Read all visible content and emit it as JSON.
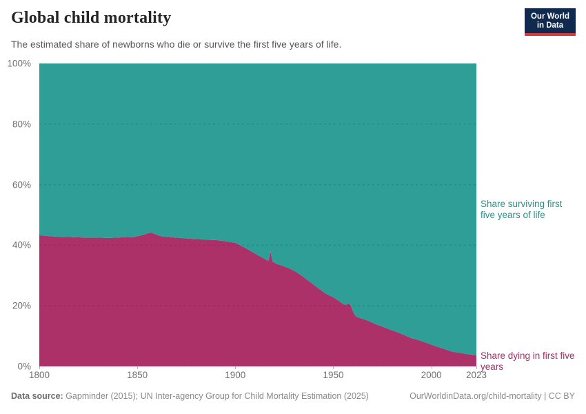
{
  "header": {
    "title": "Global child mortality",
    "subtitle": "The estimated share of newborns who die or survive the first five years of life.",
    "logo": {
      "line1": "Our World",
      "line2": "in Data",
      "bg_color": "#10294e",
      "accent_color": "#d73a3a"
    }
  },
  "chart_data": {
    "type": "area",
    "stacked": true,
    "title": "Global child mortality",
    "xlabel": "",
    "ylabel": "",
    "xlim": [
      1800,
      2023
    ],
    "ylim": [
      0,
      100
    ],
    "grid": "dashed horizontal",
    "legend_position": "right-of-plot inline labels",
    "x": [
      1800,
      1805,
      1810,
      1815,
      1820,
      1825,
      1830,
      1835,
      1840,
      1845,
      1848,
      1850,
      1853,
      1855,
      1857,
      1859,
      1861,
      1863,
      1866,
      1870,
      1874,
      1878,
      1882,
      1886,
      1890,
      1893,
      1896,
      1900,
      1903,
      1906,
      1910,
      1913,
      1916,
      1917,
      1918,
      1919,
      1921,
      1925,
      1928,
      1931,
      1934,
      1937,
      1940,
      1943,
      1946,
      1948,
      1950,
      1953,
      1955,
      1956,
      1957,
      1958,
      1959,
      1960,
      1961,
      1962,
      1964,
      1966,
      1968,
      1970,
      1973,
      1976,
      1980,
      1983,
      1986,
      1990,
      1993,
      1996,
      2000,
      2003,
      2006,
      2010,
      2013,
      2016,
      2019,
      2021,
      2023
    ],
    "series": [
      {
        "name": "Share dying in first five years",
        "color": "#ad3169",
        "label_color": "#a62d68",
        "values": [
          43.3,
          43.0,
          42.8,
          42.7,
          42.6,
          42.5,
          42.5,
          42.4,
          42.5,
          42.7,
          42.6,
          43.0,
          43.4,
          43.9,
          44.2,
          43.7,
          43.2,
          42.9,
          42.7,
          42.5,
          42.3,
          42.1,
          42.0,
          41.8,
          41.7,
          41.5,
          41.2,
          40.8,
          39.8,
          38.8,
          37.3,
          36.2,
          35.1,
          34.9,
          38.0,
          34.6,
          33.9,
          33.0,
          32.2,
          31.2,
          29.9,
          28.4,
          27.0,
          25.5,
          24.1,
          23.4,
          22.8,
          21.6,
          20.6,
          20.3,
          20.5,
          20.8,
          20.0,
          18.2,
          16.9,
          16.3,
          15.9,
          15.5,
          15.0,
          14.4,
          13.6,
          12.9,
          11.9,
          11.2,
          10.4,
          9.3,
          8.8,
          8.1,
          7.2,
          6.5,
          5.9,
          5.0,
          4.6,
          4.3,
          4.0,
          3.8,
          3.7
        ]
      },
      {
        "name": "Share surviving first five years of life",
        "color": "#2f9e96",
        "label_color": "#27918a",
        "values": [
          56.7,
          57.0,
          57.2,
          57.3,
          57.4,
          57.5,
          57.5,
          57.6,
          57.5,
          57.3,
          57.4,
          57.0,
          56.6,
          56.1,
          55.8,
          56.3,
          56.8,
          57.1,
          57.3,
          57.5,
          57.7,
          57.9,
          58.0,
          58.2,
          58.3,
          58.5,
          58.8,
          59.2,
          60.2,
          61.2,
          62.7,
          63.8,
          64.9,
          65.1,
          62.0,
          65.4,
          66.1,
          67.0,
          67.8,
          68.8,
          70.1,
          71.6,
          73.0,
          74.5,
          75.9,
          76.6,
          77.2,
          78.4,
          79.4,
          79.7,
          79.5,
          79.2,
          80.0,
          81.8,
          83.1,
          83.7,
          84.1,
          84.5,
          85.0,
          85.6,
          86.4,
          87.1,
          88.1,
          88.8,
          89.6,
          90.7,
          91.2,
          91.9,
          92.8,
          93.5,
          94.1,
          95.0,
          95.4,
          95.7,
          96.0,
          96.2,
          96.3
        ]
      }
    ],
    "yticks": [
      {
        "value": 0,
        "label": "0%"
      },
      {
        "value": 20,
        "label": "20%"
      },
      {
        "value": 40,
        "label": "40%"
      },
      {
        "value": 60,
        "label": "60%"
      },
      {
        "value": 80,
        "label": "80%"
      },
      {
        "value": 100,
        "label": "100%"
      }
    ],
    "xticks": [
      {
        "value": 1800,
        "label": "1800"
      },
      {
        "value": 1850,
        "label": "1850"
      },
      {
        "value": 1900,
        "label": "1900"
      },
      {
        "value": 1950,
        "label": "1950"
      },
      {
        "value": 2000,
        "label": "2000"
      },
      {
        "value": 2023,
        "label": "2023"
      }
    ]
  },
  "footer": {
    "datasource_label": "Data source:",
    "datasource_text": " Gapminder (2015); UN Inter-agency Group for Child Mortality Estimation (2025)",
    "rights_text": "OurWorldinData.org/child-mortality | CC BY"
  }
}
